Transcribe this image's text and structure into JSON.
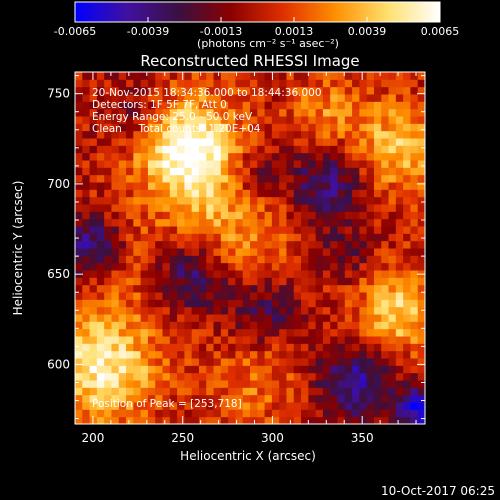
{
  "chart_data": {
    "type": "heatmap",
    "title": "Reconstructed RHESSI Image",
    "xlabel": "Heliocentric X (arcsec)",
    "ylabel": "Heliocentric Y (arcsec)",
    "xlim": [
      190,
      385
    ],
    "ylim": [
      567,
      762
    ],
    "x_ticks": [
      200,
      250,
      300,
      350
    ],
    "y_ticks": [
      600,
      650,
      700,
      750
    ],
    "grid": false,
    "colorbar": {
      "range": [
        -0.0065,
        0.0065
      ],
      "ticks": [
        "-0.0065",
        "-0.0039",
        "-0.0013",
        "0.0013",
        "0.0039",
        "0.0065"
      ],
      "unit": "(photons cm⁻² s⁻¹ asec⁻²)",
      "colormap": [
        "#0000ff",
        "#4010a0",
        "#3a1040",
        "#8c0000",
        "#e03000",
        "#ff9000",
        "#ffe070",
        "#ffffff"
      ]
    },
    "annotations": {
      "time": "20-Nov-2015 18:34:36.000 to 18:44:36.000",
      "detectors": "Detectors: 1F 5F 7F, Att 0",
      "energy": "Energy Range: 25.0 - 50.0 keV",
      "method": "Clean     Total counts: 1.20E+04",
      "peak": "Position of Peak = [253,718]"
    },
    "features": [
      {
        "x": 253,
        "y": 720,
        "value": 0.0065,
        "spread": 20
      },
      {
        "x": 205,
        "y": 600,
        "value": 0.0055,
        "spread": 22
      },
      {
        "x": 370,
        "y": 720,
        "value": 0.004,
        "spread": 18
      },
      {
        "x": 370,
        "y": 630,
        "value": 0.0045,
        "spread": 16
      },
      {
        "x": 280,
        "y": 680,
        "value": 0.003,
        "spread": 25
      },
      {
        "x": 215,
        "y": 660,
        "value": 0.0015,
        "spread": 18
      },
      {
        "x": 290,
        "y": 590,
        "value": 0.002,
        "spread": 20
      },
      {
        "x": 330,
        "y": 740,
        "value": 0.0025,
        "spread": 15
      },
      {
        "x": 200,
        "y": 665,
        "value": -0.005,
        "spread": 12
      },
      {
        "x": 255,
        "y": 650,
        "value": -0.004,
        "spread": 14
      },
      {
        "x": 330,
        "y": 700,
        "value": -0.004,
        "spread": 16
      },
      {
        "x": 290,
        "y": 705,
        "value": -0.003,
        "spread": 12
      },
      {
        "x": 295,
        "y": 630,
        "value": -0.003,
        "spread": 14
      },
      {
        "x": 345,
        "y": 590,
        "value": -0.0045,
        "spread": 15
      },
      {
        "x": 380,
        "y": 575,
        "value": -0.006,
        "spread": 8
      },
      {
        "x": 225,
        "y": 740,
        "value": -0.002,
        "spread": 12
      },
      {
        "x": 340,
        "y": 660,
        "value": -0.002,
        "spread": 10
      }
    ]
  },
  "footer": {
    "date": "10-Oct-2017 06:25"
  }
}
